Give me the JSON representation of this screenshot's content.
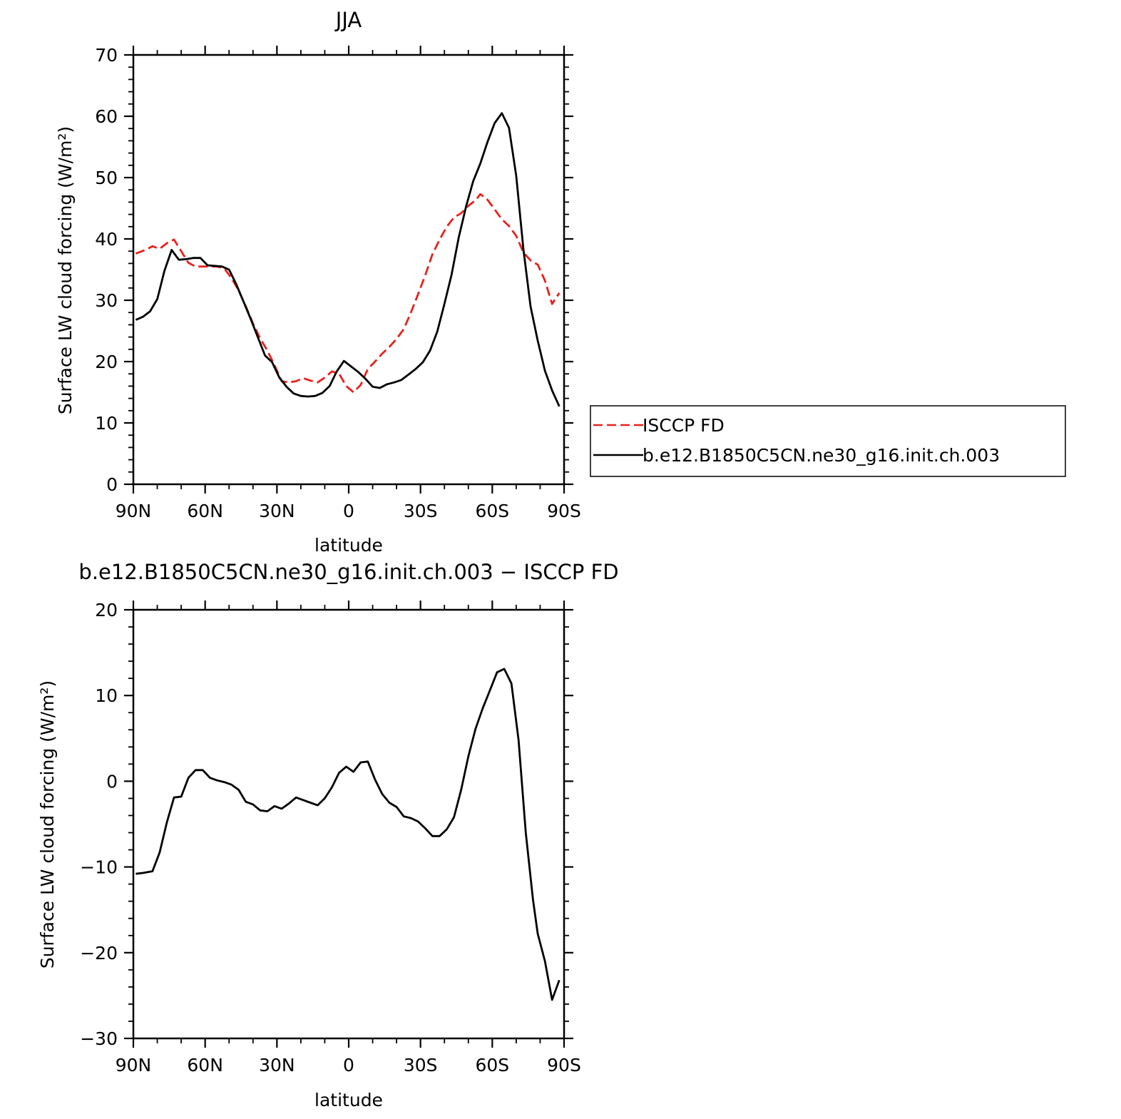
{
  "colors": {
    "obs": "#e8211c",
    "model": "#000000"
  },
  "chart_data": [
    {
      "type": "line",
      "title": "JJA",
      "xlabel": "latitude",
      "ylabel": "Surface LW cloud forcing (W/m²)",
      "x_ticks": [
        "90N",
        "60N",
        "30N",
        "0",
        "30S",
        "60S",
        "90S"
      ],
      "y_ticks": [
        "0",
        "10",
        "20",
        "30",
        "40",
        "50",
        "60",
        "70"
      ],
      "xlim": [
        90,
        -90
      ],
      "ylim": [
        0,
        70
      ],
      "grid": false,
      "legend": [
        "ISCCP FD",
        "b.e12.B1850C5CN.ne30_g16.init.ch.003"
      ],
      "legend_position": "right, outside the plot",
      "series": [
        {
          "name": "ISCCP FD",
          "style": "dashed",
          "color": "#e8211c",
          "x": [
            89,
            85,
            82,
            79,
            76,
            73,
            70,
            67,
            64,
            61,
            58,
            55,
            52,
            49,
            46,
            43,
            40,
            37,
            34,
            31,
            28,
            25,
            22,
            19,
            16,
            13,
            10,
            7,
            4,
            1,
            -2,
            -5,
            -8,
            -11,
            -14,
            -17,
            -20,
            -23,
            -26,
            -29,
            -32,
            -35,
            -38,
            -41,
            -44,
            -47,
            -50,
            -53,
            -55,
            -58,
            -61,
            -64,
            -67,
            -70,
            -73,
            -76,
            -79,
            -82,
            -85,
            -88
          ],
          "y": [
            37.6,
            38.2,
            38.8,
            38.4,
            39.3,
            39.9,
            38,
            36.1,
            35.5,
            35.5,
            35.5,
            35.5,
            35.2,
            33.6,
            31.6,
            29,
            26.2,
            23.8,
            21.8,
            19.4,
            16.8,
            16.6,
            16.8,
            17.3,
            16.9,
            16.6,
            17.4,
            18.4,
            18,
            16,
            15,
            16.2,
            18.8,
            20,
            21.3,
            22.4,
            23.7,
            25.3,
            28,
            31,
            34.1,
            37.5,
            39.9,
            42,
            43.5,
            44.2,
            45.4,
            46.3,
            47.3,
            46.4,
            44.8,
            43.2,
            42.1,
            40.5,
            37.8,
            36.5,
            35.8,
            33.2,
            29.4,
            31.2
          ]
        },
        {
          "name": "b.e12.B1850C5CN.ne30_g16.init.ch.003",
          "style": "solid",
          "color": "#000000",
          "x": [
            89,
            86,
            83,
            80,
            77,
            74,
            71,
            68,
            65,
            62,
            59,
            56,
            53,
            50,
            47,
            44,
            41,
            38,
            35,
            32,
            29,
            26,
            23,
            20,
            17,
            14,
            11,
            8,
            5,
            2,
            -1,
            -4,
            -7,
            -10,
            -13,
            -16,
            -19,
            -22,
            -25,
            -28,
            -31,
            -34,
            -37,
            -40,
            -43,
            -46,
            -49,
            -52,
            -55,
            -58,
            -61,
            -64,
            -67,
            -70,
            -73,
            -76,
            -79,
            -82,
            -85,
            -88
          ],
          "y": [
            26.8,
            27.3,
            28.2,
            30.2,
            34.8,
            38.2,
            36.6,
            36.7,
            36.9,
            36.9,
            35.7,
            35.6,
            35.5,
            35,
            32.6,
            29.8,
            27,
            24,
            21,
            19.9,
            17.4,
            15.9,
            14.8,
            14.4,
            14.3,
            14.4,
            14.9,
            16,
            18.4,
            20.1,
            19.2,
            18.3,
            17.2,
            15.9,
            15.7,
            16.3,
            16.6,
            17,
            17.9,
            18.8,
            19.9,
            21.8,
            24.9,
            29.4,
            34.2,
            40.3,
            45.2,
            49.4,
            52.3,
            55.8,
            58.9,
            60.5,
            58.1,
            50.3,
            38.3,
            29,
            23.4,
            18.5,
            15.3,
            12.7
          ]
        }
      ]
    },
    {
      "type": "line",
      "title": "b.e12.B1850C5CN.ne30_g16.init.ch.003 − ISCCP FD",
      "xlabel": "latitude",
      "ylabel": "Surface LW cloud forcing (W/m²)",
      "x_ticks": [
        "90N",
        "60N",
        "30N",
        "0",
        "30S",
        "60S",
        "90S"
      ],
      "y_ticks": [
        "−30",
        "−20",
        "−10",
        "0",
        "10",
        "20"
      ],
      "xlim": [
        90,
        -90
      ],
      "ylim": [
        -30,
        20
      ],
      "grid": false,
      "series": [
        {
          "style": "solid",
          "color": "#000000",
          "x": [
            89,
            86,
            82,
            79,
            76,
            73,
            70,
            67,
            64,
            61,
            58,
            55,
            52,
            49,
            46,
            43,
            40,
            37,
            34,
            31,
            28,
            25,
            22,
            19,
            16,
            13,
            10,
            7,
            4,
            1,
            -2,
            -5,
            -8,
            -11,
            -14,
            -17,
            -20,
            -23,
            -26,
            -29,
            -32,
            -35,
            -38,
            -41,
            -44,
            -47,
            -50,
            -53,
            -56,
            -59,
            -62,
            -65,
            -68,
            -71,
            -74,
            -77,
            -79,
            -82,
            -85,
            -88
          ],
          "y": [
            -10.8,
            -10.7,
            -10.5,
            -8.3,
            -4.8,
            -1.9,
            -1.8,
            0.4,
            1.3,
            1.3,
            0.4,
            0.1,
            -0.1,
            -0.4,
            -1,
            -2.4,
            -2.7,
            -3.4,
            -3.5,
            -2.9,
            -3.2,
            -2.6,
            -1.9,
            -2.2,
            -2.5,
            -2.8,
            -2,
            -0.7,
            1,
            1.7,
            1.1,
            2.2,
            2.3,
            0.2,
            -1.5,
            -2.5,
            -3,
            -4.1,
            -4.3,
            -4.7,
            -5.5,
            -6.4,
            -6.4,
            -5.6,
            -4.2,
            -1,
            2.9,
            6.1,
            8.5,
            10.6,
            12.7,
            13.1,
            11.4,
            4.8,
            -6,
            -13.8,
            -17.8,
            -21,
            -25.5,
            -23.2
          ]
        }
      ]
    }
  ]
}
